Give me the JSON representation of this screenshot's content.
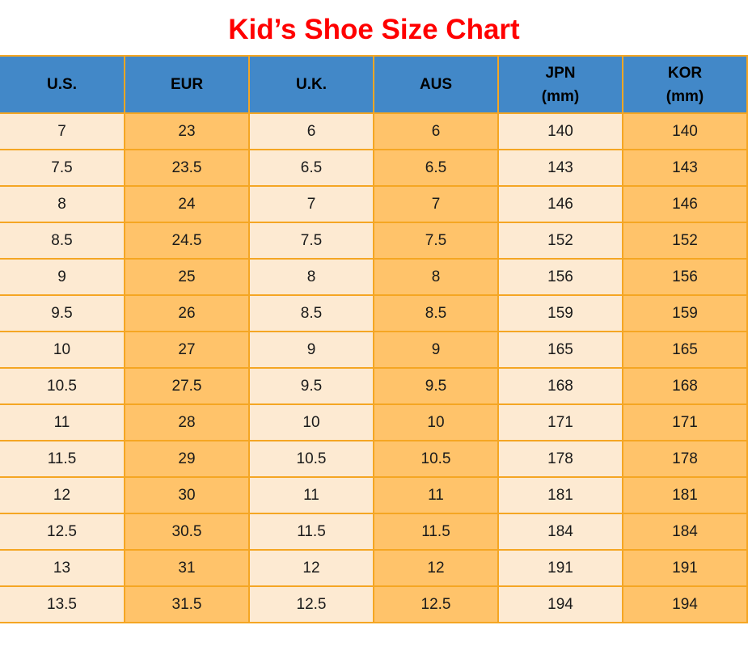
{
  "title": "Kid’s Shoe Size Chart",
  "colors": {
    "title_color": "#FF0000",
    "header_bg": "#4288C8",
    "header_text": "#000000",
    "col_light": "#FDEAD2",
    "col_orange": "#FFC36A",
    "border_color": "#F5A623",
    "cell_text": "#1A1A1A"
  },
  "table": {
    "columns": [
      {
        "label": "U.S.",
        "sub": ""
      },
      {
        "label": "EUR",
        "sub": ""
      },
      {
        "label": "U.K.",
        "sub": ""
      },
      {
        "label": "AUS",
        "sub": ""
      },
      {
        "label": "JPN",
        "sub": "(mm)"
      },
      {
        "label": "KOR",
        "sub": "(mm)"
      }
    ]
  },
  "chart_data": {
    "type": "table",
    "title": "Kid’s Shoe Size Chart",
    "columns": [
      "U.S.",
      "EUR",
      "U.K.",
      "AUS",
      "JPN (mm)",
      "KOR (mm)"
    ],
    "rows": [
      [
        "7",
        "23",
        "6",
        "6",
        "140",
        "140"
      ],
      [
        "7.5",
        "23.5",
        "6.5",
        "6.5",
        "143",
        "143"
      ],
      [
        "8",
        "24",
        "7",
        "7",
        "146",
        "146"
      ],
      [
        "8.5",
        "24.5",
        "7.5",
        "7.5",
        "152",
        "152"
      ],
      [
        "9",
        "25",
        "8",
        "8",
        "156",
        "156"
      ],
      [
        "9.5",
        "26",
        "8.5",
        "8.5",
        "159",
        "159"
      ],
      [
        "10",
        "27",
        "9",
        "9",
        "165",
        "165"
      ],
      [
        "10.5",
        "27.5",
        "9.5",
        "9.5",
        "168",
        "168"
      ],
      [
        "11",
        "28",
        "10",
        "10",
        "171",
        "171"
      ],
      [
        "11.5",
        "29",
        "10.5",
        "10.5",
        "178",
        "178"
      ],
      [
        "12",
        "30",
        "11",
        "11",
        "181",
        "181"
      ],
      [
        "12.5",
        "30.5",
        "11.5",
        "11.5",
        "184",
        "184"
      ],
      [
        "13",
        "31",
        "12",
        "12",
        "191",
        "191"
      ],
      [
        "13.5",
        "31.5",
        "12.5",
        "12.5",
        "194",
        "194"
      ]
    ]
  }
}
